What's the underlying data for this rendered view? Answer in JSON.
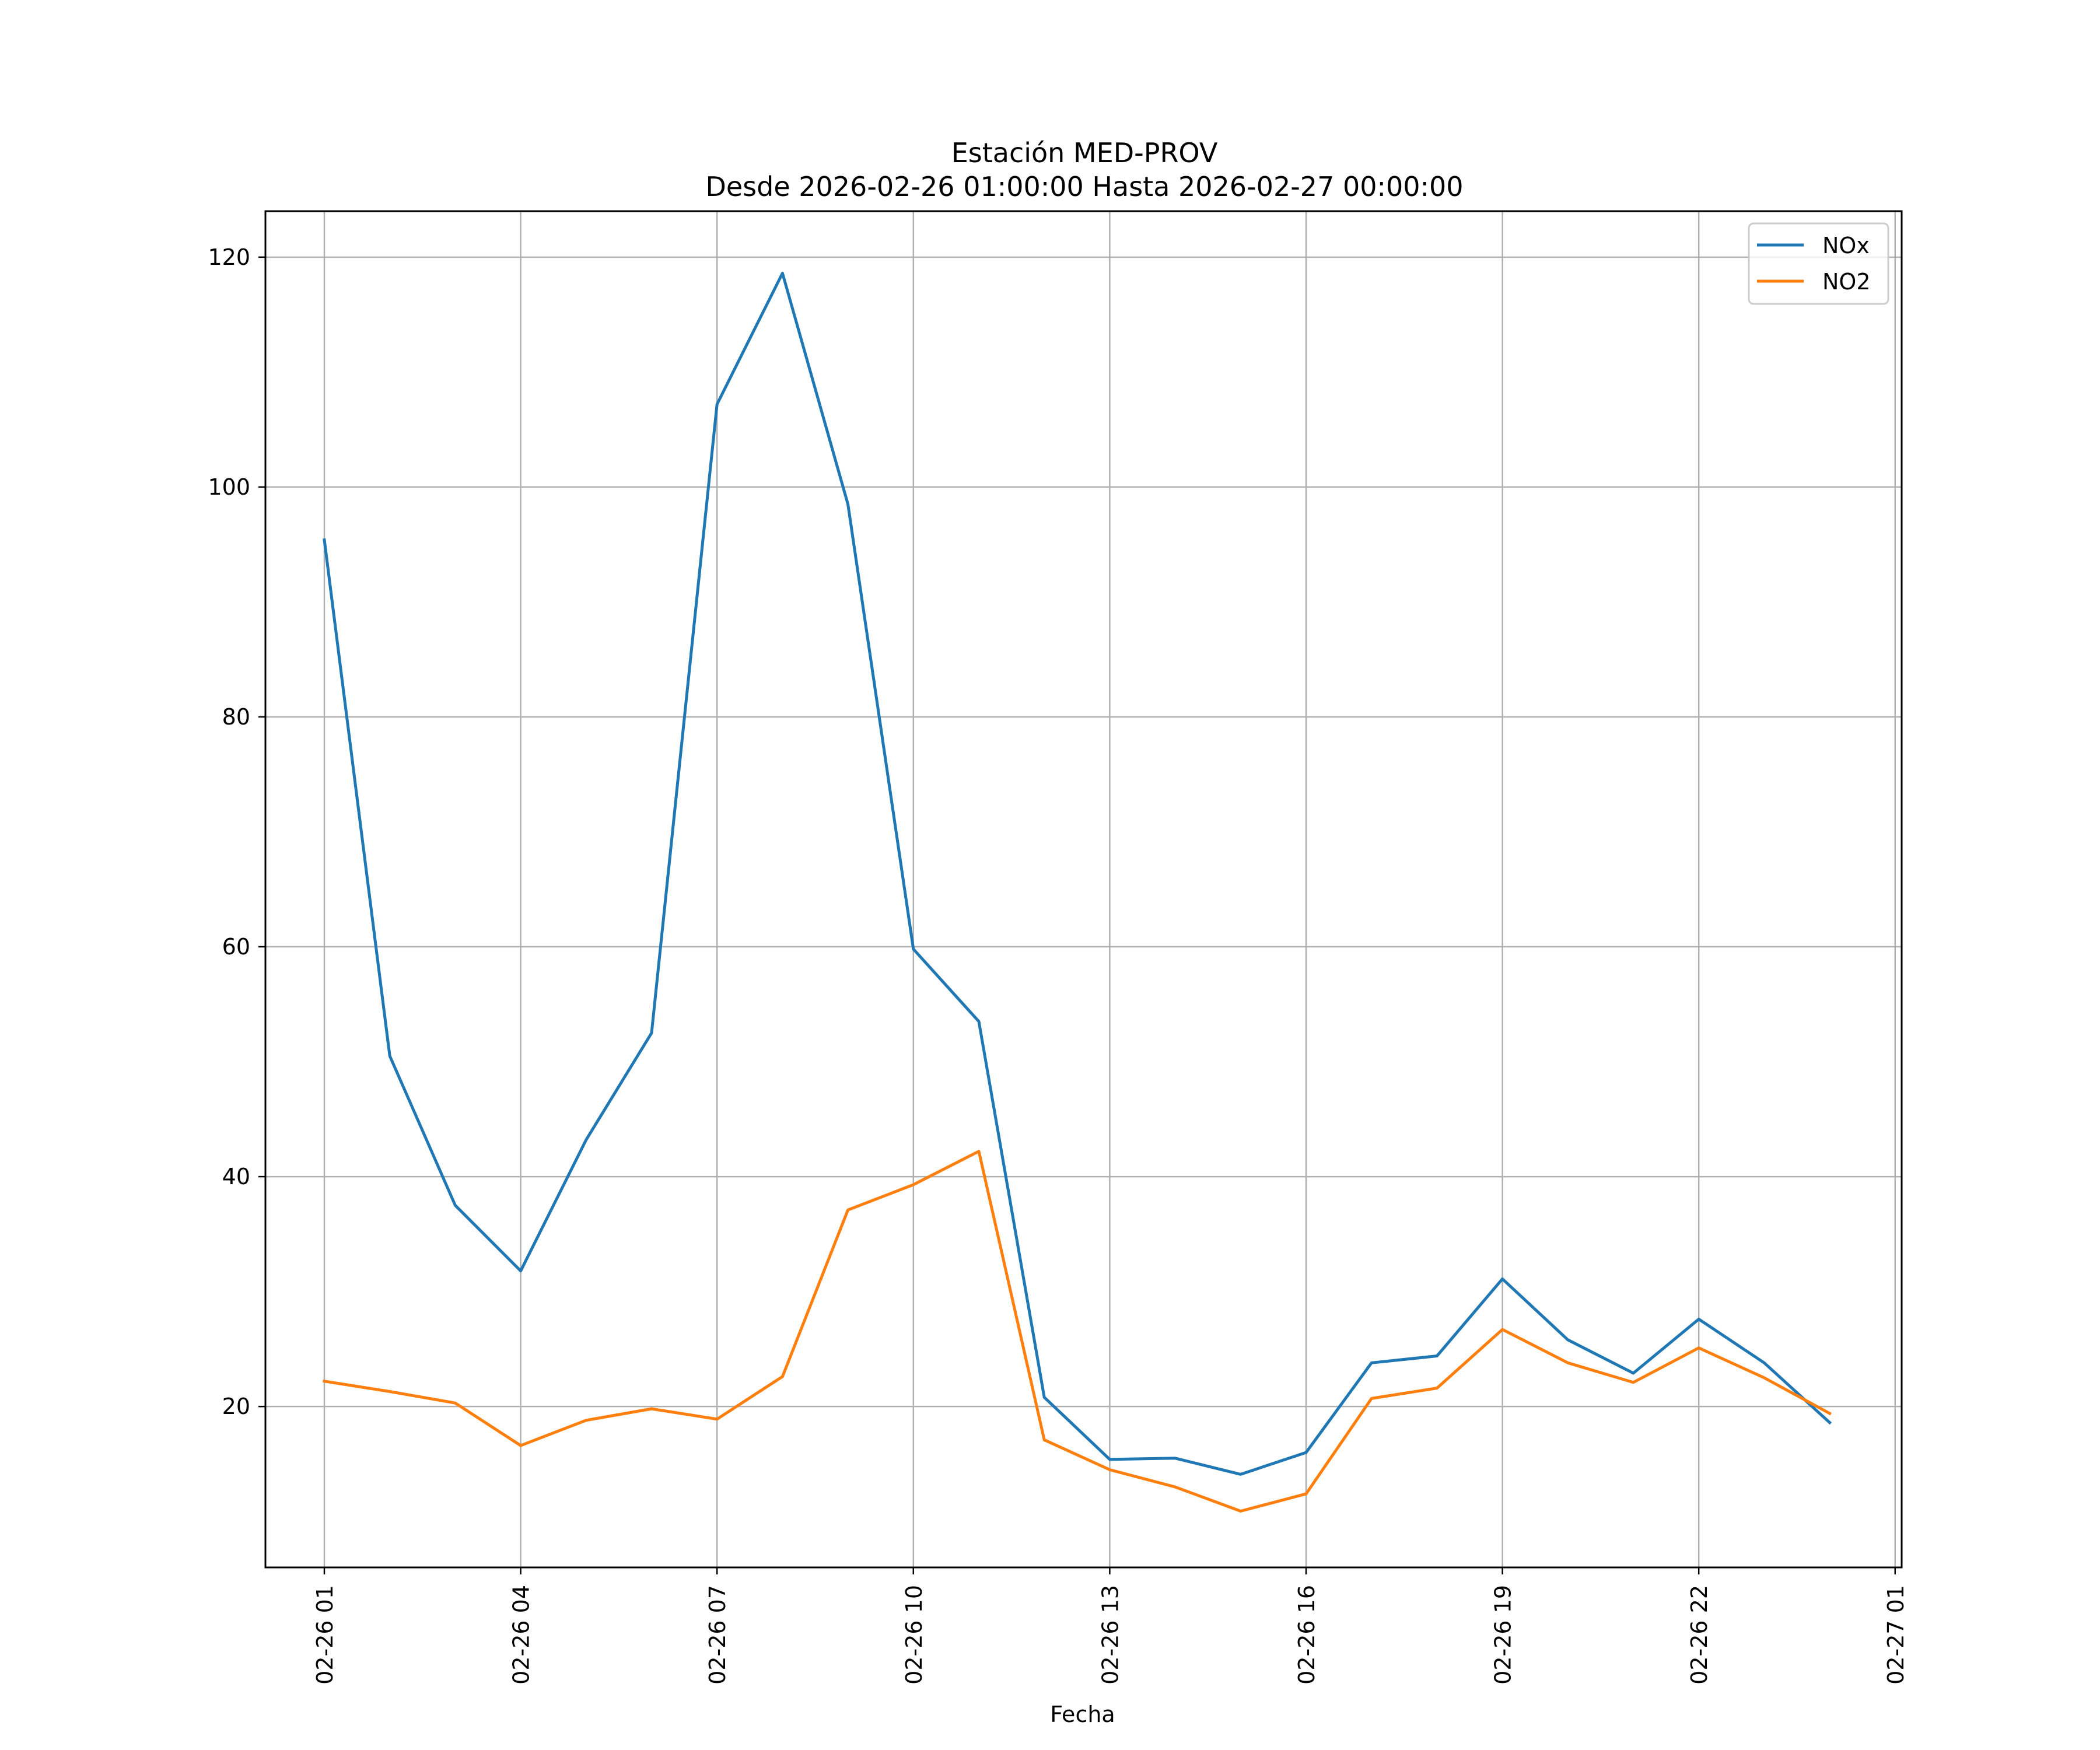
{
  "chart_data": {
    "type": "line",
    "title": "Estación MED-PROV",
    "subtitle": "Desde 2026-02-26 01:00:00 Hasta 2026-02-27 00:00:00",
    "xlabel": "Fecha",
    "ylabel": "",
    "x_hours": [
      1,
      2,
      3,
      4,
      5,
      6,
      7,
      8,
      9,
      10,
      11,
      12,
      13,
      14,
      15,
      16,
      17,
      18,
      19,
      20,
      21,
      22,
      23,
      24
    ],
    "xlim": [
      0.1,
      25.1
    ],
    "xticks": [
      {
        "value": 1,
        "label": "02-26 01"
      },
      {
        "value": 4,
        "label": "02-26 04"
      },
      {
        "value": 7,
        "label": "02-26 07"
      },
      {
        "value": 10,
        "label": "02-26 10"
      },
      {
        "value": 13,
        "label": "02-26 13"
      },
      {
        "value": 16,
        "label": "02-26 16"
      },
      {
        "value": 19,
        "label": "02-26 19"
      },
      {
        "value": 22,
        "label": "02-26 22"
      },
      {
        "value": 25,
        "label": "02-27 01"
      }
    ],
    "ylim": [
      6,
      124
    ],
    "yticks": [
      {
        "value": 20,
        "label": "20"
      },
      {
        "value": 40,
        "label": "40"
      },
      {
        "value": 60,
        "label": "60"
      },
      {
        "value": 80,
        "label": "80"
      },
      {
        "value": 100,
        "label": "100"
      },
      {
        "value": 120,
        "label": "120"
      }
    ],
    "grid": true,
    "legend_position": "top-right",
    "series": [
      {
        "name": "NOx",
        "color": "#1f77b4",
        "values": [
          95.4,
          50.5,
          37.5,
          31.8,
          43.2,
          52.5,
          107.2,
          118.6,
          98.5,
          59.8,
          53.5,
          20.8,
          15.4,
          15.5,
          14.1,
          16.0,
          23.8,
          24.4,
          31.1,
          25.8,
          22.9,
          27.6,
          23.8,
          18.6
        ]
      },
      {
        "name": "NO2",
        "color": "#ff7f0e",
        "values": [
          22.2,
          21.3,
          20.3,
          16.6,
          18.8,
          19.8,
          18.9,
          22.6,
          37.1,
          39.3,
          42.2,
          17.1,
          14.5,
          13.0,
          10.9,
          12.4,
          20.7,
          21.6,
          26.7,
          23.8,
          22.1,
          25.1,
          22.5,
          19.4
        ]
      }
    ]
  }
}
